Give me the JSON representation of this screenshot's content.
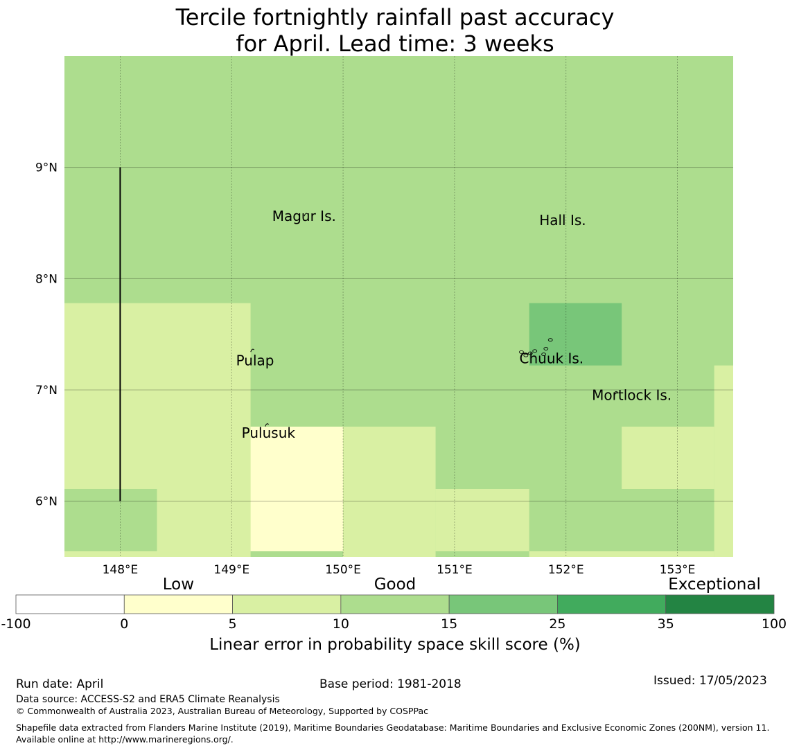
{
  "title": {
    "line1": "Tercile fortnightly rainfall past accuracy",
    "line2": "for April. Lead time: 3 weeks"
  },
  "map": {
    "lon_ticks": [
      "148°E",
      "149°E",
      "150°E",
      "151°E",
      "152°E",
      "153°E"
    ],
    "lat_ticks": [
      "9°N",
      "8°N",
      "7°N",
      "6°N"
    ],
    "lon_range": [
      147.5,
      153.5
    ],
    "lat_range": [
      5.5,
      10.0
    ],
    "places": [
      {
        "name": "Magur Is.",
        "lon": 149.65,
        "lat": 8.52
      },
      {
        "name": "Hall Is.",
        "lon": 151.97,
        "lat": 8.48
      },
      {
        "name": "Pulap",
        "lon": 149.21,
        "lat": 7.22
      },
      {
        "name": "Chuuk Is.",
        "lon": 151.87,
        "lat": 7.24
      },
      {
        "name": "Mortlock Is.",
        "lon": 152.59,
        "lat": 6.91
      },
      {
        "name": "Pulusuk",
        "lon": 149.33,
        "lat": 6.57
      }
    ],
    "grid_cells": [
      {
        "lon0": 147.5,
        "lon1": 153.5,
        "lat0": 5.5,
        "lat1": 10.0,
        "score_class": 3
      },
      {
        "lon0": 147.5,
        "lon1": 149.17,
        "lat0": 5.5,
        "lat1": 7.78,
        "score_class": 2
      },
      {
        "lon0": 149.17,
        "lon1": 150.0,
        "lat0": 5.55,
        "lat1": 6.67,
        "score_class": 1
      },
      {
        "lon0": 150.0,
        "lon1": 150.83,
        "lat0": 5.5,
        "lat1": 6.67,
        "score_class": 2
      },
      {
        "lon0": 150.83,
        "lon1": 151.67,
        "lat0": 5.5,
        "lat1": 6.11,
        "score_class": 2
      },
      {
        "lon0": 150.83,
        "lon1": 151.67,
        "lat0": 5.5,
        "lat1": 5.55,
        "score_class": 3
      },
      {
        "lon0": 151.67,
        "lon1": 152.5,
        "lat0": 7.22,
        "lat1": 7.78,
        "score_class": 4
      },
      {
        "lon0": 152.5,
        "lon1": 153.33,
        "lat0": 6.11,
        "lat1": 6.67,
        "score_class": 2
      },
      {
        "lon0": 153.33,
        "lon1": 153.5,
        "lat0": 5.5,
        "lat1": 7.22,
        "score_class": 2
      },
      {
        "lon0": 147.5,
        "lon1": 148.33,
        "lat0": 5.55,
        "lat1": 6.11,
        "score_class": 3
      },
      {
        "lon0": 151.67,
        "lon1": 153.33,
        "lat0": 5.5,
        "lat1": 5.55,
        "score_class": 2
      }
    ],
    "scale_bar": {
      "lon": 148.0,
      "lat0": 6.0,
      "lat1": 9.0
    }
  },
  "colorbar": {
    "boundaries": [
      "-100",
      "0",
      "5",
      "10",
      "15",
      "25",
      "35",
      "100"
    ],
    "colors": [
      "#ffffff",
      "#ffffcc",
      "#d9f0a3",
      "#addd8e",
      "#78c679",
      "#41ab5d",
      "#238443"
    ],
    "categories": [
      {
        "label": "Low",
        "value": 2.5
      },
      {
        "label": "Good",
        "value": 12.5
      },
      {
        "label": "Exceptional",
        "value": 67.5
      }
    ],
    "label": "Linear error in probability space skill score (%)"
  },
  "footer": {
    "run_date": "Run date: April",
    "base_period": "Base period: 1981-2018",
    "issued": "Issued: 17/05/2023",
    "data_source": "Data source: ACCESS-S2 and ERA5 Climate Reanalysis",
    "copyright": "© Commonwealth of Australia 2023, Australian Bureau of Meteorology, Supported by COSPPac",
    "shapefile": "Shapefile data extracted from Flanders Marine Institute (2019), Maritime Boundaries Geodatabase: Maritime Boundaries and Exclusive Economic Zones (200NM), version 11. Available online at http://www.marineregions.org/."
  }
}
